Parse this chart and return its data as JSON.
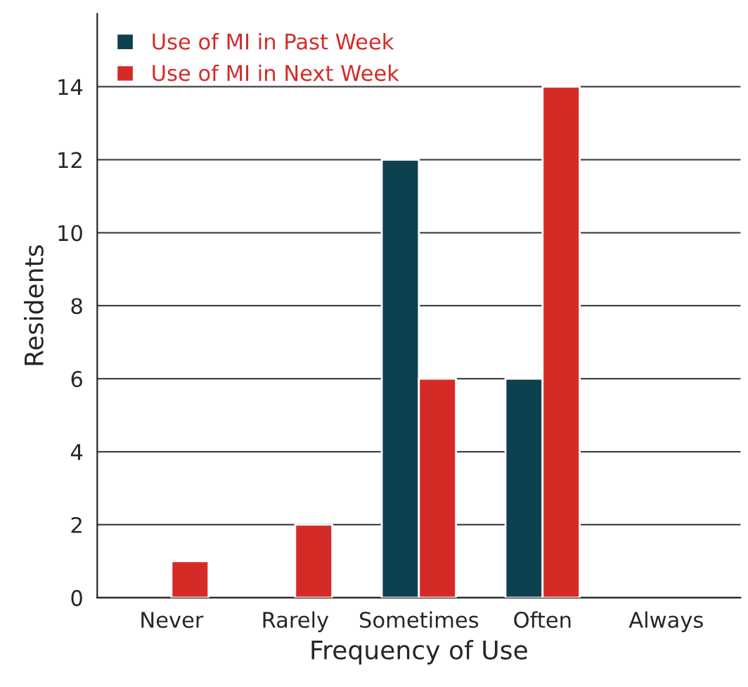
{
  "chart_data": {
    "type": "bar",
    "xlabel": "Frequency of Use",
    "ylabel": "Residents",
    "categories": [
      "Never",
      "Rarely",
      "Sometimes",
      "Often",
      "Always"
    ],
    "series": [
      {
        "name": "Use of MI in Past Week",
        "color": "#0d4150",
        "values": [
          null,
          null,
          12,
          6,
          null
        ]
      },
      {
        "name": "Use of MI in Next Week",
        "color": "#d52b27",
        "values": [
          1,
          2,
          6,
          14,
          null
        ]
      }
    ],
    "ylim": [
      0,
      16
    ],
    "yticks": [
      0,
      2,
      4,
      6,
      8,
      10,
      12,
      14
    ],
    "grid": "y",
    "legend": "top left"
  }
}
